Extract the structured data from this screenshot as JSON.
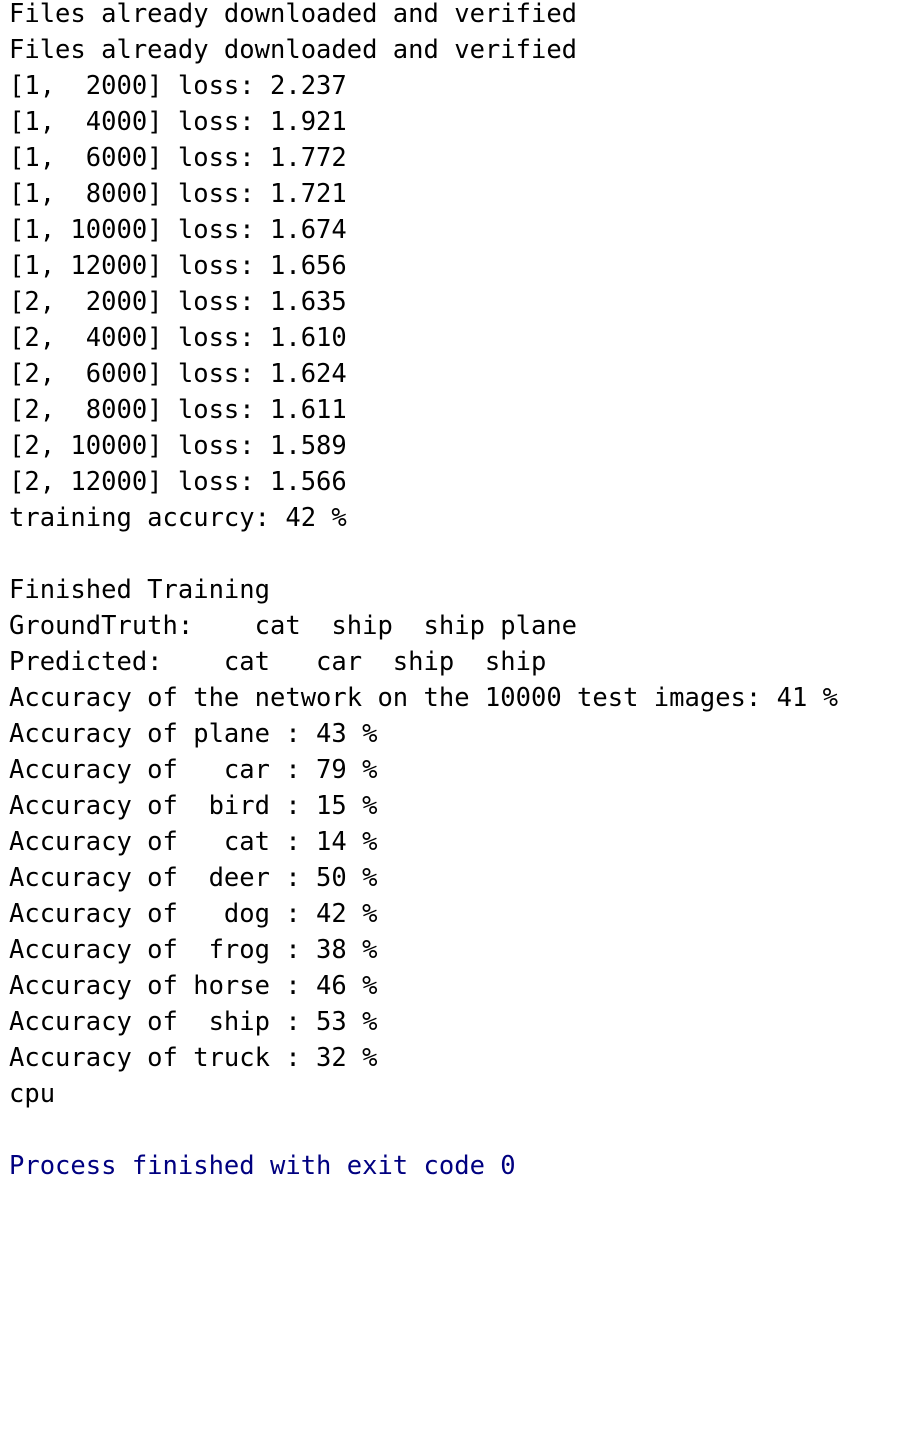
{
  "console": {
    "lines": [
      {
        "text": "Files already downloaded and verified",
        "kind": "stdout"
      },
      {
        "text": "Files already downloaded and verified",
        "kind": "stdout"
      },
      {
        "text": "[1,  2000] loss: 2.237",
        "kind": "stdout"
      },
      {
        "text": "[1,  4000] loss: 1.921",
        "kind": "stdout"
      },
      {
        "text": "[1,  6000] loss: 1.772",
        "kind": "stdout"
      },
      {
        "text": "[1,  8000] loss: 1.721",
        "kind": "stdout"
      },
      {
        "text": "[1, 10000] loss: 1.674",
        "kind": "stdout"
      },
      {
        "text": "[1, 12000] loss: 1.656",
        "kind": "stdout"
      },
      {
        "text": "[2,  2000] loss: 1.635",
        "kind": "stdout"
      },
      {
        "text": "[2,  4000] loss: 1.610",
        "kind": "stdout"
      },
      {
        "text": "[2,  6000] loss: 1.624",
        "kind": "stdout"
      },
      {
        "text": "[2,  8000] loss: 1.611",
        "kind": "stdout"
      },
      {
        "text": "[2, 10000] loss: 1.589",
        "kind": "stdout"
      },
      {
        "text": "[2, 12000] loss: 1.566",
        "kind": "stdout"
      },
      {
        "text": "training accurcy: 42 %",
        "kind": "stdout"
      },
      {
        "text": "",
        "kind": "blank"
      },
      {
        "text": "Finished Training",
        "kind": "stdout"
      },
      {
        "text": "GroundTruth:    cat  ship  ship plane",
        "kind": "stdout"
      },
      {
        "text": "Predicted:    cat   car  ship  ship",
        "kind": "stdout"
      },
      {
        "text": "Accuracy of the network on the 10000 test images: 41 %",
        "kind": "stdout"
      },
      {
        "text": "Accuracy of plane : 43 %",
        "kind": "stdout"
      },
      {
        "text": "Accuracy of   car : 79 %",
        "kind": "stdout"
      },
      {
        "text": "Accuracy of  bird : 15 %",
        "kind": "stdout"
      },
      {
        "text": "Accuracy of   cat : 14 %",
        "kind": "stdout"
      },
      {
        "text": "Accuracy of  deer : 50 %",
        "kind": "stdout"
      },
      {
        "text": "Accuracy of   dog : 42 %",
        "kind": "stdout"
      },
      {
        "text": "Accuracy of  frog : 38 %",
        "kind": "stdout"
      },
      {
        "text": "Accuracy of horse : 46 %",
        "kind": "stdout"
      },
      {
        "text": "Accuracy of  ship : 53 %",
        "kind": "stdout"
      },
      {
        "text": "Accuracy of truck : 32 %",
        "kind": "stdout"
      },
      {
        "text": "cpu",
        "kind": "stdout"
      },
      {
        "text": "",
        "kind": "blank"
      },
      {
        "text": "Process finished with exit code 0",
        "kind": "exit"
      }
    ],
    "colors": {
      "stdout": "#000000",
      "exit": "#000080",
      "background": "#ffffff"
    }
  }
}
